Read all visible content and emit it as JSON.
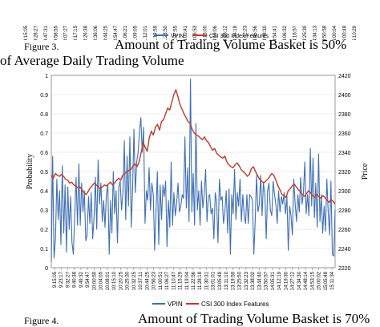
{
  "top_fragment": {
    "x_tick_labels": [
      "9:15:05",
      "9:28:27",
      "9:47:31",
      "9:58:55",
      "10:07:27",
      "10:17:15",
      "10:26:38",
      "10:36:06",
      "10:44:25",
      "10:54:47",
      "11:06:21",
      "11:09:05",
      "11:12:01",
      "11:19:59",
      "11:23:50",
      "11:27:55",
      "13:00:41",
      "13:06:53",
      "13:13:00",
      "13:19:06",
      "13:25:12",
      "13:34:18",
      "13:42:23",
      "13:45:56",
      "13:48:30",
      "13:54:41",
      "14:06:32",
      "14:16:57",
      "14:25:39",
      "14:34:13",
      "14:50:58",
      "15:00:04",
      "15:00:48",
      "15:10:29"
    ],
    "legend": {
      "vpin": "VPIN",
      "index": "CSI 300 Index Features"
    }
  },
  "captions": {
    "fig3_label": "Figure 3.",
    "fig3_text": "Amount of Trading Volume Basket is 50%",
    "fig3_text2": "of Average Daily Trading Volume",
    "fig4_label": "Figure 4.",
    "fig4_text": "Amount of Trading Volume Basket is 70%"
  },
  "colors": {
    "vpin": "#3f6fb4",
    "index": "#c0392b",
    "grid": "#d9d9d9",
    "axis": "#808080"
  },
  "chart_data": {
    "type": "line",
    "ylabel": "Probability",
    "y2label": "Price",
    "ylim": [
      0,
      1
    ],
    "y_ticks": [
      "0",
      "0.1",
      "0.2",
      "0.3",
      "0.4",
      "0.5",
      "0.6",
      "0.7",
      "0.8",
      "0.9",
      "1"
    ],
    "y2lim": [
      2220,
      2420
    ],
    "y2_ticks": [
      "2220",
      "2240",
      "2260",
      "2280",
      "2300",
      "2320",
      "2340",
      "2360",
      "2380",
      "2400",
      "2420"
    ],
    "x_tick_labels": [
      "9:15:05",
      "9:23:17",
      "9:32:27",
      "9:40:38",
      "9:49:32",
      "9:54:47",
      "10:00:59",
      "10:04:05",
      "10:08:01",
      "10:15:10",
      "10:20:25",
      "10:25:30",
      "10:32:25",
      "10:37:11",
      "10:44:25",
      "10:56:23",
      "11:00:51",
      "11:06:27",
      "11:10:47",
      "11:15:29",
      "11:19:04",
      "11:22:56",
      "11:28:18",
      "11:30:31",
      "13:01:01",
      "13:05:48",
      "13:11:10",
      "13:19:59",
      "13:25:50",
      "13:32:23",
      "13:38:02",
      "13:44:40",
      "13:50:57",
      "14:05:31",
      "14:12:19",
      "14:19:30",
      "14:27:12",
      "14:34:30",
      "14:48:14",
      "14:53:15",
      "15:00:02",
      "15:05:48",
      "15:11:34"
    ],
    "grid": true,
    "legend_position": "bottom",
    "series": [
      {
        "name": "VPIN",
        "axis": "left",
        "values": [
          0.03,
          0.58,
          0.05,
          0.15,
          0.46,
          0.25,
          0.4,
          0.12,
          0.53,
          0.18,
          0.43,
          0.08,
          0.42,
          0.2,
          0.37,
          0.13,
          0.07,
          0.27,
          0.47,
          0.22,
          0.54,
          0.22,
          0.44,
          0.29,
          0.4,
          0.14,
          0.17,
          0.37,
          0.23,
          0.39,
          0.15,
          0.26,
          0.47,
          0.2,
          0.56,
          0.33,
          0.44,
          0.24,
          0.35,
          0.21,
          0.38,
          0.43,
          0.07,
          0.35,
          0.18,
          0.5,
          0.28,
          0.4,
          0.13,
          0.42,
          0.45,
          0.3,
          0.4,
          0.66,
          0.25,
          0.58,
          0.32,
          0.68,
          0.21,
          0.41,
          0.72,
          0.39,
          0.55,
          0.6,
          0.71,
          0.78,
          0.6,
          0.73,
          0.23,
          0.4,
          0.35,
          0.52,
          0.3,
          0.44,
          0.38,
          0.09,
          0.29,
          0.5,
          0.12,
          0.43,
          0.25,
          0.43,
          0.37,
          0.45,
          0.11,
          0.35,
          0.21,
          0.55,
          0.22,
          0.39,
          0.27,
          0.34,
          0.44,
          0.29,
          0.32,
          0.38,
          0.36,
          0.68,
          0.31,
          0.52,
          0.24,
          0.98,
          0.29,
          0.49,
          0.22,
          0.75,
          0.3,
          0.4,
          0.22,
          0.45,
          0.31,
          0.38,
          0.51,
          0.24,
          0.37,
          0.38,
          0.28,
          0.31,
          0.15,
          0.39,
          0.34,
          0.13,
          0.46,
          0.35,
          0.37,
          0.23,
          0.29,
          0.4,
          0.18,
          0.41,
          0.07,
          0.38,
          0.28,
          0.51,
          0.25,
          0.39,
          0.32,
          0.46,
          0.24,
          0.38,
          0.27,
          0.23,
          0.38,
          0.23,
          0.38,
          0.37,
          0.35,
          0.07,
          0.24,
          0.48,
          0.29,
          0.33,
          0.48,
          0.27,
          0.44,
          0.38,
          0.15,
          0.4,
          0.44,
          0.3,
          0.27,
          0.45,
          0.38,
          0.33,
          0.23,
          0.4,
          0.29,
          0.37,
          0.33,
          0.39,
          0.28,
          0.37,
          0.09,
          0.32,
          0.27,
          0.17,
          0.46,
          0.33,
          0.24,
          0.38,
          0.29,
          0.47,
          0.33,
          0.39,
          0.55,
          0.28,
          0.38,
          0.27,
          0.62,
          0.32,
          0.57,
          0.26,
          0.44,
          0.21,
          0.59,
          0.24,
          0.38,
          0.18,
          0.32,
          0.19,
          0.46,
          0.29,
          0.17,
          0.45,
          0.07,
          0.06,
          0.3
        ]
      },
      {
        "name": "CSI 300 Index Features",
        "axis": "right",
        "values": [
          2316,
          2313,
          2318,
          2316,
          2315,
          2317,
          2315,
          2312,
          2311,
          2308,
          2309,
          2306,
          2305,
          2303,
          2304,
          2301,
          2298,
          2296,
          2299,
          2303,
          2305,
          2308,
          2306,
          2304,
          2302,
          2304,
          2306,
          2305,
          2307,
          2309,
          2306,
          2308,
          2311,
          2313,
          2311,
          2316,
          2318,
          2320,
          2321,
          2322,
          2326,
          2328,
          2325,
          2330,
          2340,
          2350,
          2345,
          2341,
          2355,
          2362,
          2358,
          2366,
          2369,
          2363,
          2372,
          2374,
          2380,
          2386,
          2384,
          2392,
          2400,
          2405,
          2398,
          2390,
          2385,
          2380,
          2376,
          2372,
          2370,
          2364,
          2360,
          2358,
          2357,
          2355,
          2353,
          2356,
          2352,
          2350,
          2346,
          2342,
          2344,
          2339,
          2337,
          2335,
          2334,
          2336,
          2330,
          2327,
          2325,
          2324,
          2327,
          2329,
          2326,
          2322,
          2320,
          2318,
          2315,
          2317,
          2323,
          2325,
          2320,
          2316,
          2312,
          2310,
          2308,
          2310,
          2312,
          2315,
          2318,
          2316,
          2311,
          2305,
          2301,
          2296,
          2295,
          2293,
          2300,
          2302,
          2305,
          2307,
          2304,
          2301,
          2299,
          2296,
          2294,
          2297,
          2300,
          2298,
          2295,
          2293,
          2296,
          2294,
          2292,
          2295,
          2293,
          2290,
          2288,
          2291,
          2289,
          2286
        ]
      }
    ]
  }
}
